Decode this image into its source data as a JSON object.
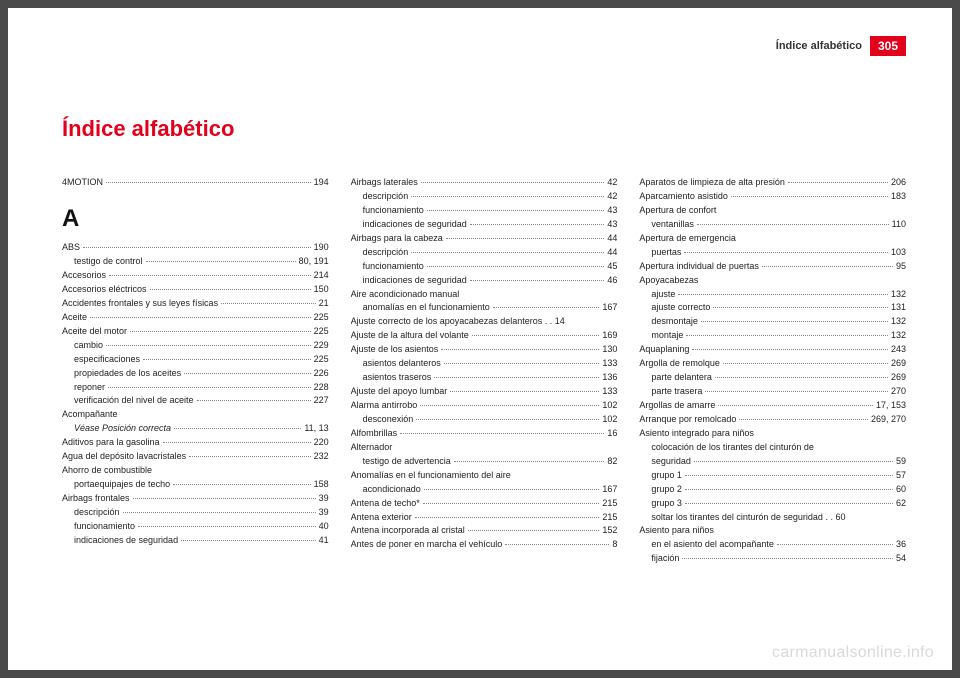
{
  "header": {
    "section": "Índice alfabético",
    "pageNum": "305"
  },
  "title": "Índice alfabético",
  "watermark": "carmanualsonline.info",
  "columns": [
    {
      "blocks": [
        {
          "type": "entry",
          "label": "4MOTION",
          "page": "194"
        },
        {
          "type": "letter",
          "text": "A"
        },
        {
          "type": "entry",
          "label": "ABS",
          "page": "190"
        },
        {
          "type": "sub",
          "label": "testigo de control",
          "page": "80, 191"
        },
        {
          "type": "entry",
          "label": "Accesorios",
          "page": "214"
        },
        {
          "type": "entry",
          "label": "Accesorios eléctricos",
          "page": "150"
        },
        {
          "type": "entry",
          "label": "Accidentes frontales y sus leyes físicas",
          "page": "21"
        },
        {
          "type": "entry",
          "label": "Aceite",
          "page": "225"
        },
        {
          "type": "entry",
          "label": "Aceite del motor",
          "page": "225"
        },
        {
          "type": "sub",
          "label": "cambio",
          "page": "229"
        },
        {
          "type": "sub",
          "label": "especificaciones",
          "page": "225"
        },
        {
          "type": "sub",
          "label": "propiedades de los aceites",
          "page": "226"
        },
        {
          "type": "sub",
          "label": "reponer",
          "page": "228"
        },
        {
          "type": "sub",
          "label": "verificación del nivel de aceite",
          "page": "227"
        },
        {
          "type": "entry",
          "label": "Acompañante",
          "page": "",
          "noline": true
        },
        {
          "type": "sub",
          "label": "Véase Posición correcta",
          "italic": true,
          "page": "11, 13"
        },
        {
          "type": "entry",
          "label": "Aditivos para la gasolina",
          "page": "220"
        },
        {
          "type": "entry",
          "label": "Agua del depósito lavacristales",
          "page": "232"
        },
        {
          "type": "entry",
          "label": "Ahorro de combustible",
          "page": "",
          "noline": true
        },
        {
          "type": "sub",
          "label": "portaequipajes de techo",
          "page": "158"
        },
        {
          "type": "entry",
          "label": "Airbags frontales",
          "page": "39"
        },
        {
          "type": "sub",
          "label": "descripción",
          "page": "39"
        },
        {
          "type": "sub",
          "label": "funcionamiento",
          "page": "40"
        },
        {
          "type": "sub",
          "label": "indicaciones de seguridad",
          "page": "41"
        }
      ]
    },
    {
      "blocks": [
        {
          "type": "entry",
          "label": "Airbags laterales",
          "page": "42"
        },
        {
          "type": "sub",
          "label": "descripción",
          "page": "42"
        },
        {
          "type": "sub",
          "label": "funcionamiento",
          "page": "43"
        },
        {
          "type": "sub",
          "label": "indicaciones de seguridad",
          "page": "43"
        },
        {
          "type": "entry",
          "label": "Airbags para la cabeza",
          "page": "44"
        },
        {
          "type": "sub",
          "label": "descripción",
          "page": "44"
        },
        {
          "type": "sub",
          "label": "funcionamiento",
          "page": "45"
        },
        {
          "type": "sub",
          "label": "indicaciones de seguridad",
          "page": "46"
        },
        {
          "type": "entry",
          "label": "Aire acondicionado manual",
          "page": "",
          "noline": true
        },
        {
          "type": "sub",
          "label": "anomalías en el funcionamiento",
          "page": "167"
        },
        {
          "type": "entry",
          "label": "Ajuste correcto de los apoyacabezas delanteros  . . 14",
          "page": "",
          "noline": true
        },
        {
          "type": "entry",
          "label": "Ajuste de la altura del volante",
          "page": "169"
        },
        {
          "type": "entry",
          "label": "Ajuste de los asientos",
          "page": "130"
        },
        {
          "type": "sub",
          "label": "asientos delanteros",
          "page": "133"
        },
        {
          "type": "sub",
          "label": "asientos traseros",
          "page": "136"
        },
        {
          "type": "entry",
          "label": "Ajuste del apoyo lumbar",
          "page": "133"
        },
        {
          "type": "entry",
          "label": "Alarma antirrobo",
          "page": "102"
        },
        {
          "type": "sub",
          "label": "desconexión",
          "page": "102"
        },
        {
          "type": "entry",
          "label": "Alfombrillas",
          "page": "16"
        },
        {
          "type": "entry",
          "label": "Alternador",
          "page": "",
          "noline": true
        },
        {
          "type": "sub",
          "label": "testigo de advertencia",
          "page": "82"
        },
        {
          "type": "entry",
          "label": "Anomalías en el funcionamiento del aire",
          "page": "",
          "noline": true
        },
        {
          "type": "sub",
          "label": "acondicionado",
          "page": "167"
        },
        {
          "type": "entry",
          "label": "Antena de techo*",
          "page": "215"
        },
        {
          "type": "entry",
          "label": "Antena exterior",
          "page": "215"
        },
        {
          "type": "entry",
          "label": "Antena incorporada al cristal",
          "page": "152"
        },
        {
          "type": "entry",
          "label": "Antes de poner en marcha el vehículo",
          "page": "8"
        }
      ]
    },
    {
      "blocks": [
        {
          "type": "entry",
          "label": "Aparatos de limpieza de alta presión",
          "page": "206"
        },
        {
          "type": "entry",
          "label": "Aparcamiento asistido",
          "page": "183"
        },
        {
          "type": "entry",
          "label": "Apertura de confort",
          "page": "",
          "noline": true
        },
        {
          "type": "sub",
          "label": "ventanillas",
          "page": "110"
        },
        {
          "type": "entry",
          "label": "Apertura de emergencia",
          "page": "",
          "noline": true
        },
        {
          "type": "sub",
          "label": "puertas",
          "page": "103"
        },
        {
          "type": "entry",
          "label": "Apertura individual de puertas",
          "page": "95"
        },
        {
          "type": "entry",
          "label": "Apoyacabezas",
          "page": "",
          "noline": true
        },
        {
          "type": "sub",
          "label": "ajuste",
          "page": "132"
        },
        {
          "type": "sub",
          "label": "ajuste correcto",
          "page": "131"
        },
        {
          "type": "sub",
          "label": "desmontaje",
          "page": "132"
        },
        {
          "type": "sub",
          "label": "montaje",
          "page": "132"
        },
        {
          "type": "entry",
          "label": "Aquaplaning",
          "page": "243"
        },
        {
          "type": "entry",
          "label": "Argolla de remolque",
          "page": "269"
        },
        {
          "type": "sub",
          "label": "parte delantera",
          "page": "269"
        },
        {
          "type": "sub",
          "label": "parte trasera",
          "page": "270"
        },
        {
          "type": "entry",
          "label": "Argollas de amarre",
          "page": "17, 153"
        },
        {
          "type": "entry",
          "label": "Arranque por remolcado",
          "page": "269, 270"
        },
        {
          "type": "entry",
          "label": "Asiento integrado para niños",
          "page": "",
          "noline": true
        },
        {
          "type": "sub",
          "label": "colocación de los tirantes del cinturón de",
          "page": "",
          "noline": true
        },
        {
          "type": "sub",
          "label": "  seguridad",
          "page": "59"
        },
        {
          "type": "sub",
          "label": "grupo 1",
          "page": "57"
        },
        {
          "type": "sub",
          "label": "grupo 2",
          "page": "60"
        },
        {
          "type": "sub",
          "label": "grupo 3",
          "page": "62"
        },
        {
          "type": "sub",
          "label": "soltar los tirantes del cinturón de seguridad   . . 60",
          "page": "",
          "noline": true
        },
        {
          "type": "entry",
          "label": "Asiento para niños",
          "page": "",
          "noline": true
        },
        {
          "type": "sub",
          "label": "en el asiento del acompañante",
          "page": "36"
        },
        {
          "type": "sub",
          "label": "fijación",
          "page": "54"
        }
      ]
    }
  ]
}
